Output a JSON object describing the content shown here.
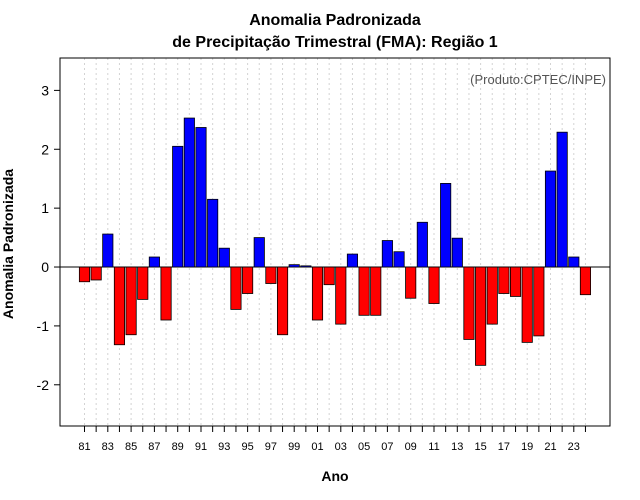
{
  "chart_data": {
    "type": "bar",
    "title": [
      "Anomalia Padronizada",
      "de Precipitação Trimestral (FMA): Região 1"
    ],
    "xlabel": "Ano",
    "ylabel": "Anomalia Padronizada",
    "annotation": "(Produto:CPTEC/INPE)",
    "ylim": [
      -2.7,
      3.55
    ],
    "yticks": [
      -2,
      -1,
      0,
      1,
      2,
      3
    ],
    "grid": "vertical dotted",
    "colors": {
      "positive": "#0000ff",
      "negative": "#ff0000",
      "grid": "#d3d3d3",
      "annotation": "#555555"
    },
    "categories": [
      "81",
      "82",
      "83",
      "84",
      "85",
      "86",
      "87",
      "88",
      "89",
      "90",
      "91",
      "92",
      "93",
      "94",
      "95",
      "96",
      "97",
      "98",
      "99",
      "00",
      "01",
      "02",
      "03",
      "04",
      "05",
      "06",
      "07",
      "08",
      "09",
      "10",
      "11",
      "12",
      "13",
      "14",
      "15",
      "16",
      "17",
      "18",
      "19",
      "20",
      "21",
      "22",
      "23",
      "24"
    ],
    "x_tick_labels": [
      "81",
      "83",
      "85",
      "87",
      "89",
      "91",
      "93",
      "95",
      "97",
      "99",
      "01",
      "03",
      "05",
      "07",
      "09",
      "11",
      "13",
      "15",
      "17",
      "19",
      "21",
      "23"
    ],
    "values": [
      -0.25,
      -0.22,
      0.56,
      -1.32,
      -1.15,
      -0.55,
      0.17,
      -0.9,
      2.05,
      2.53,
      2.37,
      1.15,
      0.32,
      -0.72,
      -0.45,
      0.5,
      -0.28,
      -1.15,
      0.04,
      0.02,
      -0.9,
      -0.3,
      -0.97,
      0.22,
      -0.82,
      -0.82,
      0.45,
      0.26,
      -0.53,
      0.76,
      -0.62,
      1.42,
      0.49,
      -1.23,
      -1.67,
      -0.97,
      -0.45,
      -0.5,
      -1.28,
      -1.17,
      1.63,
      2.29,
      0.17,
      -0.47
    ]
  }
}
